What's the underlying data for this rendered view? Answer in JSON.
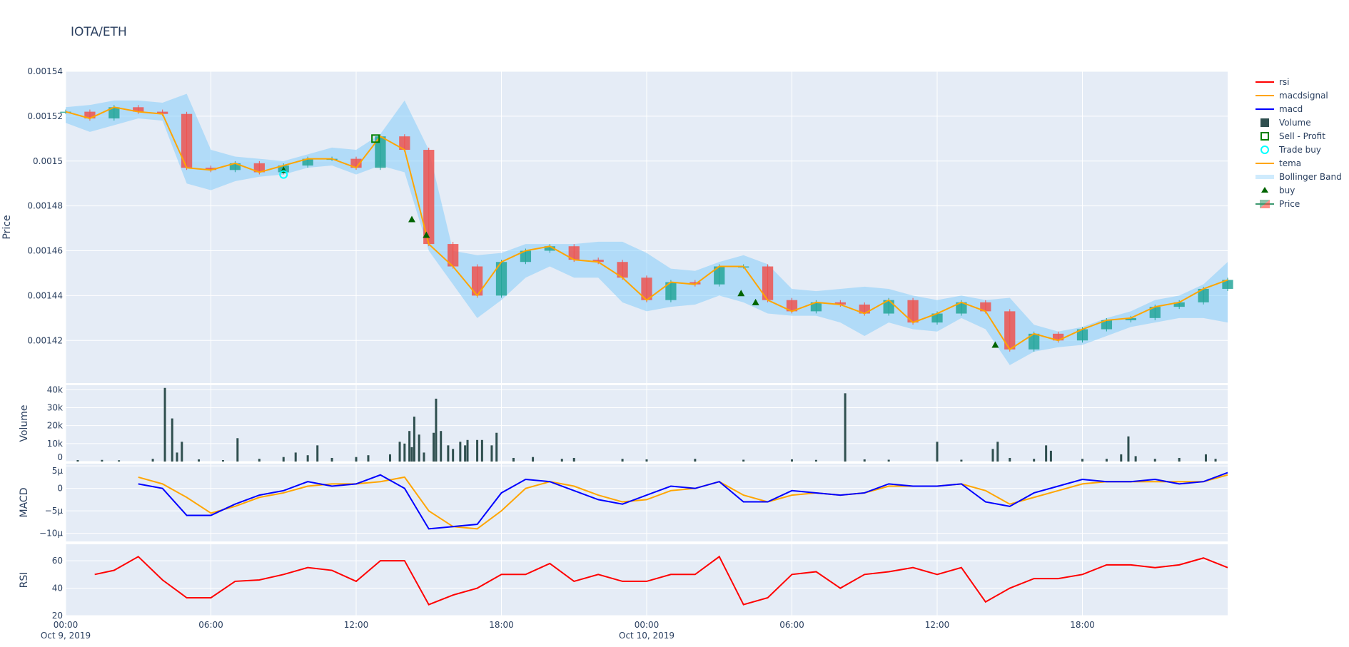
{
  "title": "IOTA/ETH",
  "colors": {
    "plot_bg": "#e5ecf6",
    "increasing": "#26a69a",
    "decreasing": "#ef5350",
    "tema": "#ffa500",
    "bollinger": "#87cefa",
    "macd": "#0000ff",
    "macdsignal": "#ffa500",
    "rsi": "#ff0000",
    "volume": "#2f4f4f",
    "buy": "#006400",
    "trade_buy": "#00ffff",
    "sell_profit": "#008000"
  },
  "legend": [
    {
      "name": "rsi",
      "icon": "line",
      "color": "#ff0000"
    },
    {
      "name": "macdsignal",
      "icon": "line",
      "color": "#ffa500"
    },
    {
      "name": "macd",
      "icon": "line",
      "color": "#0000ff"
    },
    {
      "name": "Volume",
      "icon": "square",
      "color": "#2f4f4f"
    },
    {
      "name": "Sell - Profit",
      "icon": "square-open",
      "color": "#008000"
    },
    {
      "name": "Trade buy",
      "icon": "circle-open",
      "color": "#00ffff"
    },
    {
      "name": "tema",
      "icon": "line",
      "color": "#ffa500"
    },
    {
      "name": "Bollinger Band",
      "icon": "band",
      "color": "#87cefa"
    },
    {
      "name": "buy",
      "icon": "triangle",
      "color": "#006400"
    },
    {
      "name": "Price",
      "icon": "candlestick",
      "color": "#26a69a"
    }
  ],
  "chart_data": [
    {
      "type": "candlestick",
      "ylabel": "Price",
      "ylim": [
        0.001401,
        0.00154
      ],
      "yticks": [
        {
          "v": 0.00142,
          "label": "0.00142"
        },
        {
          "v": 0.00144,
          "label": "0.00144"
        },
        {
          "v": 0.00146,
          "label": "0.00146"
        },
        {
          "v": 0.00148,
          "label": "0.00148"
        },
        {
          "v": 0.0015,
          "label": "0.0015"
        },
        {
          "v": 0.00152,
          "label": "0.00152"
        },
        {
          "v": 0.00154,
          "label": "0.00154"
        }
      ],
      "x_hours": [
        0,
        1,
        2,
        3,
        4,
        5,
        6,
        7,
        8,
        9,
        10,
        11,
        12,
        13,
        14,
        15,
        16,
        17,
        18,
        19,
        20,
        21,
        22,
        23,
        24,
        25,
        26,
        27,
        28,
        29,
        30,
        31,
        32,
        33,
        34,
        35,
        36,
        37,
        38,
        39,
        40,
        41,
        42,
        43,
        44,
        45,
        46,
        47,
        48
      ],
      "close": [
        0.001522,
        0.001519,
        0.001524,
        0.001522,
        0.001521,
        0.001497,
        0.001496,
        0.001499,
        0.001495,
        0.001498,
        0.001501,
        0.001501,
        0.001497,
        0.001511,
        0.001505,
        0.001463,
        0.001453,
        0.00144,
        0.001455,
        0.00146,
        0.001462,
        0.001456,
        0.001455,
        0.001448,
        0.001438,
        0.001446,
        0.001445,
        0.001453,
        0.001453,
        0.001438,
        0.001433,
        0.001437,
        0.001436,
        0.001432,
        0.001438,
        0.001428,
        0.001432,
        0.001437,
        0.001433,
        0.001416,
        0.001423,
        0.00142,
        0.001425,
        0.001429,
        0.00143,
        0.001435,
        0.001437,
        0.001443,
        0.001447
      ],
      "bb_upper": [
        0.001524,
        0.001525,
        0.001527,
        0.001527,
        0.001526,
        0.00153,
        0.001505,
        0.001502,
        0.001501,
        0.0015,
        0.001503,
        0.001506,
        0.001505,
        0.001512,
        0.001527,
        0.001505,
        0.00146,
        0.001458,
        0.001459,
        0.001463,
        0.001463,
        0.001463,
        0.001464,
        0.001464,
        0.001459,
        0.001452,
        0.001451,
        0.001455,
        0.001458,
        0.001454,
        0.001443,
        0.001442,
        0.001443,
        0.001444,
        0.001443,
        0.00144,
        0.001438,
        0.00144,
        0.001438,
        0.001439,
        0.001427,
        0.001424,
        0.001426,
        0.00143,
        0.001433,
        0.001438,
        0.00144,
        0.001445,
        0.001455
      ],
      "bb_lower": [
        0.001517,
        0.001513,
        0.001516,
        0.001519,
        0.001518,
        0.00149,
        0.001487,
        0.001491,
        0.001493,
        0.001494,
        0.001497,
        0.001498,
        0.001494,
        0.001498,
        0.001495,
        0.00146,
        0.001445,
        0.00143,
        0.001438,
        0.001448,
        0.001453,
        0.001448,
        0.001448,
        0.001437,
        0.001433,
        0.001435,
        0.001436,
        0.00144,
        0.001437,
        0.001432,
        0.001431,
        0.001431,
        0.001428,
        0.001422,
        0.001428,
        0.001425,
        0.001424,
        0.00143,
        0.001425,
        0.001409,
        0.001415,
        0.001417,
        0.001418,
        0.001422,
        0.001426,
        0.001428,
        0.00143,
        0.00143,
        0.001428
      ],
      "buy": [
        {
          "h": 9,
          "v": 0.001496
        },
        {
          "h": 14.3,
          "v": 0.001474
        },
        {
          "h": 14.9,
          "v": 0.001467
        },
        {
          "h": 27.9,
          "v": 0.001441
        },
        {
          "h": 28.5,
          "v": 0.001437
        },
        {
          "h": 38.4,
          "v": 0.001418
        }
      ],
      "trade_buy": [
        {
          "h": 9,
          "v": 0.001494
        }
      ],
      "sell_profit": [
        {
          "h": 12.8,
          "v": 0.00151
        }
      ]
    },
    {
      "type": "bar",
      "ylabel": "Volume",
      "ylim": [
        0,
        42500
      ],
      "yticks": [
        {
          "v": 0,
          "label": "0"
        },
        {
          "v": 10000,
          "label": "10k"
        },
        {
          "v": 20000,
          "label": "20k"
        },
        {
          "v": 30000,
          "label": "30k"
        },
        {
          "v": 40000,
          "label": "40k"
        }
      ],
      "bars": [
        [
          0.5,
          800
        ],
        [
          1.5,
          900
        ],
        [
          2.2,
          700
        ],
        [
          3.6,
          1500
        ],
        [
          4.1,
          41000
        ],
        [
          4.4,
          24000
        ],
        [
          4.6,
          5000
        ],
        [
          4.8,
          11000
        ],
        [
          5.5,
          1200
        ],
        [
          6.5,
          800
        ],
        [
          7.1,
          13000
        ],
        [
          8,
          1500
        ],
        [
          9,
          2500
        ],
        [
          9.5,
          5000
        ],
        [
          10,
          3500
        ],
        [
          10.4,
          9000
        ],
        [
          11,
          2000
        ],
        [
          12,
          2500
        ],
        [
          12.5,
          3500
        ],
        [
          13.4,
          4000
        ],
        [
          13.8,
          11000
        ],
        [
          14,
          10000
        ],
        [
          14.2,
          17000
        ],
        [
          14.3,
          8000
        ],
        [
          14.4,
          25000
        ],
        [
          14.6,
          15000
        ],
        [
          14.8,
          5000
        ],
        [
          15.2,
          16000
        ],
        [
          15.3,
          35000
        ],
        [
          15.5,
          17000
        ],
        [
          15.8,
          9000
        ],
        [
          16,
          7000
        ],
        [
          16.3,
          11000
        ],
        [
          16.5,
          9000
        ],
        [
          16.6,
          12000
        ],
        [
          17,
          12000
        ],
        [
          17.2,
          12000
        ],
        [
          17.6,
          9000
        ],
        [
          17.8,
          16000
        ],
        [
          18.5,
          2000
        ],
        [
          19.3,
          2500
        ],
        [
          20.5,
          1500
        ],
        [
          21,
          2000
        ],
        [
          23,
          1500
        ],
        [
          24,
          1200
        ],
        [
          26,
          1500
        ],
        [
          28,
          1000
        ],
        [
          30,
          1200
        ],
        [
          31,
          900
        ],
        [
          32.2,
          38000
        ],
        [
          33,
          1200
        ],
        [
          34,
          1000
        ],
        [
          36,
          11000
        ],
        [
          37,
          1000
        ],
        [
          38.3,
          7000
        ],
        [
          38.5,
          11000
        ],
        [
          39,
          2000
        ],
        [
          40,
          1500
        ],
        [
          40.5,
          9000
        ],
        [
          40.7,
          6000
        ],
        [
          42,
          1500
        ],
        [
          43,
          1500
        ],
        [
          43.6,
          4000
        ],
        [
          43.9,
          14000
        ],
        [
          44.2,
          3000
        ],
        [
          45,
          1500
        ],
        [
          46,
          2000
        ],
        [
          47.1,
          4000
        ],
        [
          47.5,
          1500
        ]
      ]
    },
    {
      "type": "line",
      "ylabel": "MACD",
      "ylim": [
        -1.18e-05,
        5.5e-06
      ],
      "yticks": [
        {
          "v": -1e-05,
          "label": "−10µ"
        },
        {
          "v": -5e-06,
          "label": "−5µ"
        },
        {
          "v": 0,
          "label": "0"
        },
        {
          "v": 5e-06,
          "label": "5µ"
        }
      ],
      "x_hours": [
        3,
        4,
        5,
        6,
        7,
        8,
        9,
        10,
        11,
        12,
        13,
        14,
        15,
        16,
        17,
        18,
        19,
        20,
        21,
        22,
        23,
        24,
        25,
        26,
        27,
        28,
        29,
        30,
        31,
        32,
        33,
        34,
        35,
        36,
        37,
        38,
        39,
        40,
        41,
        42,
        43,
        44,
        45,
        46,
        47,
        48
      ],
      "series": [
        {
          "name": "macd",
          "values_micro": [
            1,
            0,
            -6,
            -6,
            -3.5,
            -1.5,
            -0.5,
            1.5,
            0.5,
            1,
            3,
            0,
            -9,
            -8.5,
            -8,
            -1,
            2,
            1.5,
            -0.5,
            -2.5,
            -3.5,
            -1.5,
            0.5,
            0,
            1.5,
            -3,
            -3,
            -0.5,
            -1,
            -1.5,
            -1,
            1,
            0.5,
            0.5,
            1,
            -3,
            -4,
            -1,
            0.5,
            2,
            1.5,
            1.5,
            2,
            1,
            1.5,
            3.5
          ]
        },
        {
          "name": "macdsignal",
          "values_micro": [
            2.5,
            1,
            -2,
            -5.5,
            -4,
            -2,
            -1,
            0.5,
            1,
            1,
            1.5,
            2.5,
            -5,
            -8.5,
            -9,
            -5,
            0,
            1.5,
            0.5,
            -1.5,
            -3,
            -2.5,
            -0.5,
            0,
            1.5,
            -1.5,
            -3,
            -1.5,
            -1,
            -1.5,
            -1,
            0.5,
            0.5,
            0.5,
            1,
            -0.5,
            -3.5,
            -2,
            -0.5,
            1,
            1.5,
            1.5,
            1.5,
            1.5,
            1.5,
            3
          ]
        }
      ]
    },
    {
      "type": "line",
      "ylabel": "RSI",
      "ylim": [
        20,
        72
      ],
      "yticks": [
        {
          "v": 20,
          "label": "20"
        },
        {
          "v": 40,
          "label": "40"
        },
        {
          "v": 60,
          "label": "60"
        }
      ],
      "x_hours": [
        1.2,
        2,
        3,
        4,
        5,
        6,
        7,
        8,
        9,
        10,
        11,
        12,
        13,
        14,
        15,
        16,
        17,
        18,
        19,
        20,
        21,
        22,
        23,
        24,
        25,
        26,
        27,
        28,
        29,
        30,
        31,
        32,
        33,
        34,
        35,
        36,
        37,
        38,
        39,
        40,
        41,
        42,
        43,
        44,
        45,
        46,
        47,
        48
      ],
      "series": [
        {
          "name": "rsi",
          "values": [
            50,
            53,
            63,
            46,
            33,
            33,
            45,
            46,
            50,
            55,
            53,
            45,
            60,
            60,
            28,
            35,
            40,
            50,
            50,
            58,
            45,
            50,
            45,
            45,
            50,
            50,
            63,
            28,
            33,
            50,
            52,
            40,
            50,
            52,
            55,
            50,
            55,
            30,
            40,
            47,
            47,
            50,
            57,
            57,
            55,
            57,
            62,
            55
          ]
        }
      ]
    }
  ],
  "xaxis": {
    "ticks": [
      {
        "h": 0,
        "label": "00:00",
        "sub": "Oct 9, 2019"
      },
      {
        "h": 6,
        "label": "06:00"
      },
      {
        "h": 12,
        "label": "12:00"
      },
      {
        "h": 18,
        "label": "18:00"
      },
      {
        "h": 24,
        "label": "00:00",
        "sub": "Oct 10, 2019"
      },
      {
        "h": 30,
        "label": "06:00"
      },
      {
        "h": 36,
        "label": "12:00"
      },
      {
        "h": 42,
        "label": "18:00"
      }
    ],
    "range_hours": [
      0,
      48
    ]
  }
}
